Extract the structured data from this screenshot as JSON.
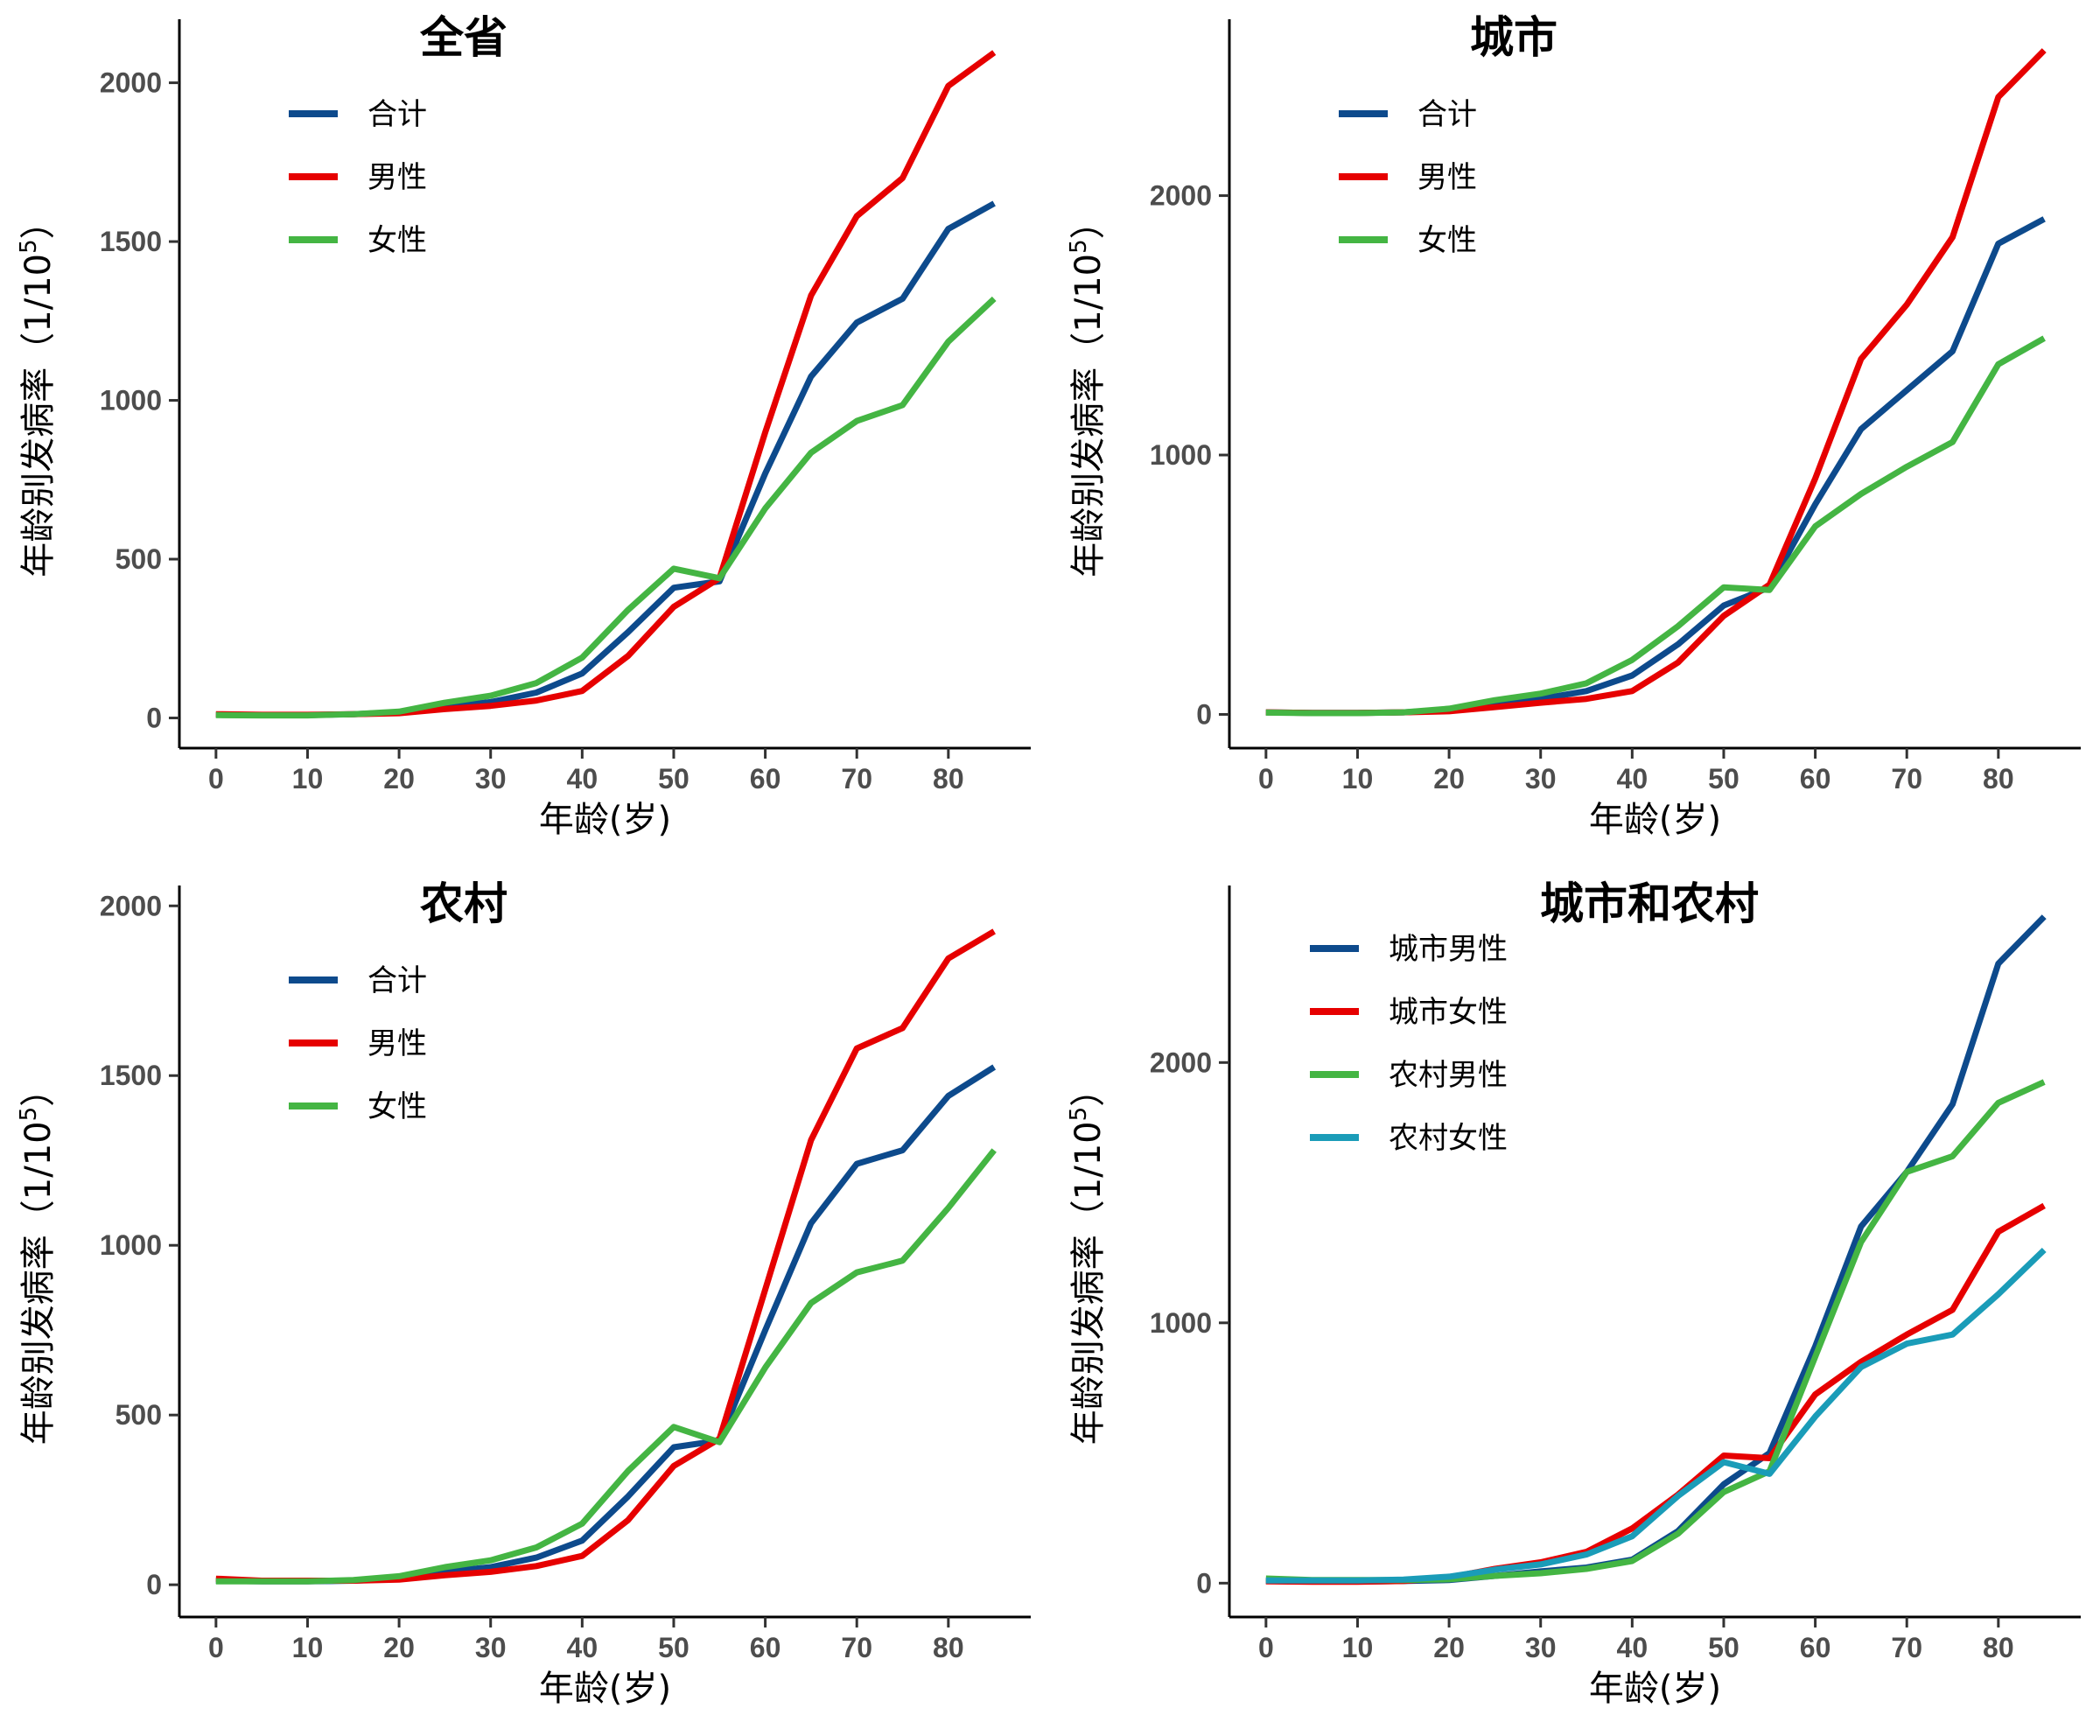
{
  "figure": {
    "x_axis_title": "年龄(岁)",
    "y_axis_title_prefix": "年龄别发病率（1/10",
    "y_axis_title_exp": "5",
    "y_axis_title_suffix": "）"
  },
  "chart_data": [
    {
      "type": "line",
      "title": "全省",
      "xlabel": "年龄(岁)",
      "ylabel": "年龄别发病率（1/10⁵）",
      "x": [
        0,
        5,
        10,
        15,
        20,
        25,
        30,
        35,
        40,
        45,
        50,
        55,
        60,
        65,
        70,
        75,
        80,
        85
      ],
      "xticks": [
        0,
        10,
        20,
        30,
        40,
        50,
        60,
        70,
        80
      ],
      "yticks": [
        0,
        500,
        1000,
        1500,
        2000
      ],
      "xlim": [
        -4,
        89
      ],
      "ylim": [
        -95,
        2200
      ],
      "legend_position": "top-left",
      "grid": false,
      "series": [
        {
          "name": "合计",
          "color": "#0d4a8c",
          "values": [
            10,
            9,
            9,
            12,
            18,
            35,
            50,
            80,
            140,
            270,
            410,
            430,
            770,
            1075,
            1245,
            1320,
            1540,
            1620
          ]
        },
        {
          "name": "男性",
          "color": "#e60000",
          "values": [
            12,
            10,
            10,
            12,
            15,
            28,
            38,
            55,
            85,
            195,
            350,
            440,
            900,
            1330,
            1580,
            1700,
            1990,
            2095
          ]
        },
        {
          "name": "女性",
          "color": "#44b543",
          "values": [
            9,
            8,
            8,
            12,
            20,
            48,
            70,
            110,
            190,
            340,
            470,
            440,
            660,
            835,
            935,
            985,
            1185,
            1320
          ]
        }
      ]
    },
    {
      "type": "line",
      "title": "城市",
      "xlabel": "年龄(岁)",
      "ylabel": "年龄别发病率（1/10⁵）",
      "x": [
        0,
        5,
        10,
        15,
        20,
        25,
        30,
        35,
        40,
        45,
        50,
        55,
        60,
        65,
        70,
        75,
        80,
        85
      ],
      "xticks": [
        0,
        10,
        20,
        30,
        40,
        50,
        60,
        70,
        80
      ],
      "yticks": [
        0,
        1000,
        2000
      ],
      "xlim": [
        -4,
        89
      ],
      "ylim": [
        -130,
        2680
      ],
      "legend_position": "top-left",
      "grid": false,
      "series": [
        {
          "name": "合计",
          "color": "#0d4a8c",
          "values": [
            8,
            6,
            6,
            8,
            18,
            40,
            60,
            90,
            150,
            270,
            420,
            490,
            810,
            1100,
            1250,
            1400,
            1815,
            1910
          ]
        },
        {
          "name": "男性",
          "color": "#e60000",
          "values": [
            8,
            6,
            6,
            8,
            12,
            28,
            45,
            60,
            90,
            200,
            380,
            500,
            910,
            1370,
            1580,
            1840,
            2380,
            2560
          ]
        },
        {
          "name": "女性",
          "color": "#44b543",
          "values": [
            7,
            5,
            5,
            8,
            22,
            55,
            80,
            120,
            210,
            340,
            490,
            480,
            725,
            850,
            955,
            1050,
            1350,
            1450
          ]
        }
      ]
    },
    {
      "type": "line",
      "title": "农村",
      "xlabel": "年龄(岁)",
      "ylabel": "年龄别发病率（1/10⁵）",
      "x": [
        0,
        5,
        10,
        15,
        20,
        25,
        30,
        35,
        40,
        45,
        50,
        55,
        60,
        65,
        70,
        75,
        80,
        85
      ],
      "xticks": [
        0,
        10,
        20,
        30,
        40,
        50,
        60,
        70,
        80
      ],
      "yticks": [
        0,
        500,
        1000,
        1500,
        2000
      ],
      "xlim": [
        -4,
        89
      ],
      "ylim": [
        -95,
        2060
      ],
      "legend_position": "top-left",
      "grid": false,
      "series": [
        {
          "name": "合计",
          "color": "#0d4a8c",
          "values": [
            12,
            10,
            10,
            12,
            18,
            38,
            52,
            80,
            130,
            260,
            405,
            425,
            750,
            1065,
            1240,
            1280,
            1440,
            1525
          ]
        },
        {
          "name": "男性",
          "color": "#e60000",
          "values": [
            18,
            12,
            12,
            12,
            15,
            28,
            38,
            55,
            85,
            190,
            350,
            430,
            870,
            1310,
            1580,
            1640,
            1845,
            1925
          ]
        },
        {
          "name": "女性",
          "color": "#44b543",
          "values": [
            10,
            10,
            10,
            14,
            25,
            52,
            72,
            110,
            180,
            335,
            465,
            420,
            640,
            830,
            920,
            955,
            1110,
            1280
          ]
        }
      ]
    },
    {
      "type": "line",
      "title": "城市和农村",
      "xlabel": "年龄(岁)",
      "ylabel": "年龄别发病率（1/10⁵）",
      "x": [
        0,
        5,
        10,
        15,
        20,
        25,
        30,
        35,
        40,
        45,
        50,
        55,
        60,
        65,
        70,
        75,
        80,
        85
      ],
      "xticks": [
        0,
        10,
        20,
        30,
        40,
        50,
        60,
        70,
        80
      ],
      "yticks": [
        0,
        1000,
        2000
      ],
      "xlim": [
        -4,
        89
      ],
      "ylim": [
        -130,
        2680
      ],
      "legend_position": "top-left",
      "grid": false,
      "series": [
        {
          "name": "城市男性",
          "color": "#0d4a8c",
          "values": [
            8,
            6,
            6,
            8,
            12,
            28,
            45,
            60,
            90,
            200,
            380,
            500,
            910,
            1370,
            1580,
            1840,
            2380,
            2560
          ]
        },
        {
          "name": "城市女性",
          "color": "#e60000",
          "values": [
            7,
            5,
            5,
            8,
            22,
            55,
            80,
            120,
            210,
            340,
            490,
            480,
            725,
            850,
            955,
            1050,
            1350,
            1450
          ]
        },
        {
          "name": "农村男性",
          "color": "#44b543",
          "values": [
            18,
            12,
            12,
            12,
            15,
            28,
            38,
            55,
            85,
            190,
            350,
            430,
            870,
            1310,
            1580,
            1640,
            1845,
            1925
          ]
        },
        {
          "name": "农村女性",
          "color": "#1a9cb8",
          "values": [
            10,
            10,
            10,
            14,
            25,
            52,
            72,
            110,
            180,
            335,
            465,
            420,
            640,
            830,
            920,
            955,
            1110,
            1280
          ]
        }
      ]
    }
  ]
}
